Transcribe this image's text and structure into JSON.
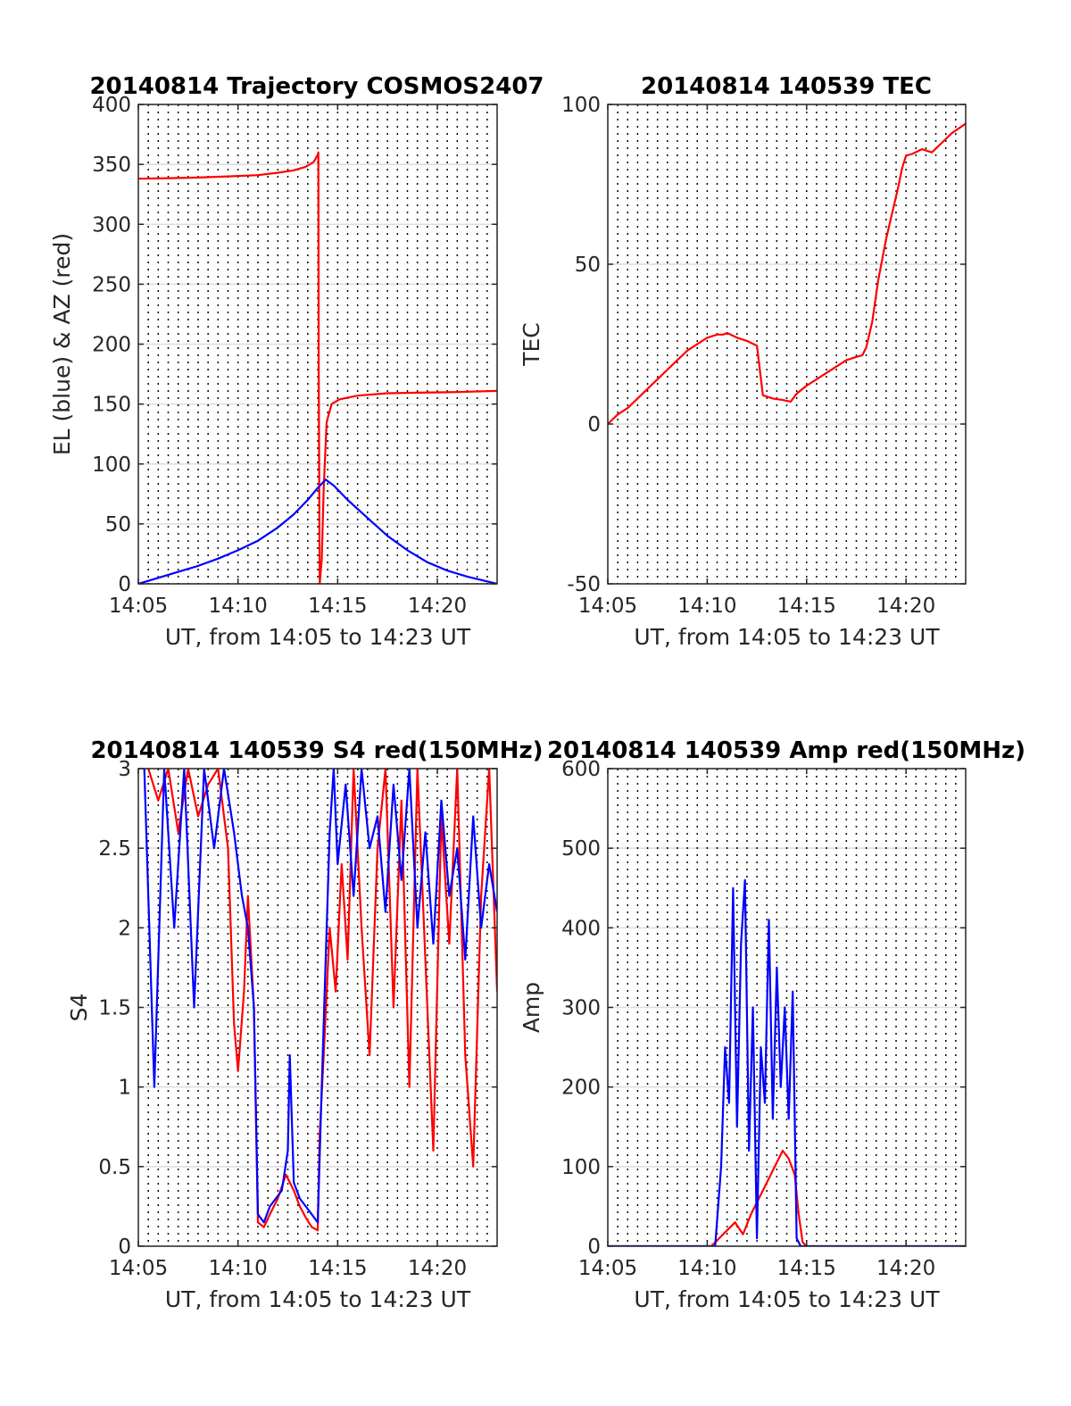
{
  "chart_data": [
    {
      "type": "line",
      "title": "20140814 Trajectory COSMOS2407",
      "xlabel": "UT, from 14:05 to 14:23 UT",
      "ylabel": "EL (blue) & AZ (red)",
      "x_unit": "minutes since 14:00",
      "xlim": [
        5,
        23
      ],
      "ylim": [
        0,
        400
      ],
      "xticks": [
        5,
        10,
        15,
        20
      ],
      "xtick_labels": [
        "14:05",
        "14:10",
        "14:15",
        "14:20"
      ],
      "yticks": [
        0,
        50,
        100,
        150,
        200,
        250,
        300,
        350,
        400
      ],
      "ytick_labels": [
        "0",
        "50",
        "100",
        "150",
        "200",
        "250",
        "300",
        "350",
        "400"
      ],
      "grid": "dotted vertical every 0.5 min, solid horizontal at y ticks",
      "series": [
        {
          "name": "AZ",
          "color": "#ff0000",
          "x": [
            5.0,
            6.5,
            8.0,
            9.5,
            11.0,
            12.0,
            12.8,
            13.4,
            13.8,
            14.0,
            14.03,
            14.05,
            14.1,
            14.2,
            14.3,
            14.45,
            14.7,
            15.1,
            16.0,
            17.5,
            19.0,
            21.0,
            23.0
          ],
          "y": [
            338,
            338.5,
            339,
            340,
            341,
            343,
            345,
            348,
            352,
            358,
            360,
            180,
            0,
            20,
            80,
            135,
            150,
            154,
            157,
            159,
            159.5,
            160,
            161
          ]
        },
        {
          "name": "EL",
          "color": "#0000ff",
          "x": [
            5.0,
            6.0,
            7.0,
            8.0,
            9.0,
            10.0,
            11.0,
            12.0,
            12.8,
            13.5,
            14.0,
            14.4,
            14.8,
            15.5,
            16.5,
            17.5,
            18.5,
            19.5,
            20.5,
            21.5,
            22.5,
            23.0
          ],
          "y": [
            0,
            5,
            10,
            15,
            21,
            28,
            36,
            47,
            58,
            70,
            80,
            87,
            82,
            70,
            55,
            40,
            28,
            18,
            11,
            6,
            2,
            0
          ]
        }
      ]
    },
    {
      "type": "line",
      "title": "20140814 140539 TEC",
      "xlabel": "UT, from 14:05 to 14:23 UT",
      "ylabel": "TEC",
      "x_unit": "minutes since 14:00",
      "xlim": [
        5,
        23
      ],
      "ylim": [
        -50,
        100
      ],
      "xticks": [
        5,
        10,
        15,
        20
      ],
      "xtick_labels": [
        "14:05",
        "14:10",
        "14:15",
        "14:20"
      ],
      "yticks": [
        -50,
        0,
        50,
        100
      ],
      "ytick_labels": [
        "-50",
        "0",
        "50",
        "100"
      ],
      "series": [
        {
          "name": "TEC",
          "color": "#ff0000",
          "x": [
            5.0,
            5.5,
            6.0,
            7.0,
            8.0,
            9.0,
            10.0,
            10.5,
            10.8,
            11.0,
            11.5,
            12.0,
            12.5,
            12.8,
            13.3,
            13.8,
            14.2,
            14.5,
            15.0,
            15.5,
            16.0,
            16.5,
            17.0,
            17.5,
            17.8,
            18.0,
            18.3,
            18.6,
            19.0,
            19.3,
            19.6,
            19.8,
            20.0,
            20.3,
            20.8,
            21.3,
            21.8,
            22.3,
            23.0
          ],
          "y": [
            0,
            3,
            5,
            11,
            17,
            23,
            27,
            28,
            28,
            28.5,
            27,
            26,
            24.5,
            9,
            8,
            7.5,
            7,
            9.5,
            12,
            14,
            16,
            18,
            20,
            21,
            21.5,
            24,
            32,
            45,
            58,
            66,
            74,
            80,
            84,
            84.5,
            86,
            85,
            88,
            91,
            94
          ]
        }
      ]
    },
    {
      "type": "line",
      "title": "20140814 140539 S4 red(150MHz)",
      "xlabel": "UT, from 14:05 to 14:23 UT",
      "ylabel": "S4",
      "x_unit": "minutes since 14:00",
      "xlim": [
        5,
        23
      ],
      "ylim": [
        0,
        3
      ],
      "xticks": [
        5,
        10,
        15,
        20
      ],
      "xtick_labels": [
        "14:05",
        "14:10",
        "14:15",
        "14:20"
      ],
      "yticks": [
        0,
        0.5,
        1,
        1.5,
        2,
        2.5,
        3
      ],
      "ytick_labels": [
        "0",
        "0.5",
        "1",
        "1.5",
        "2",
        "2.5",
        "3"
      ],
      "series": [
        {
          "name": "S4 red (150MHz)",
          "color": "#ff0000",
          "x": [
            5.5,
            6.0,
            6.5,
            7.0,
            7.5,
            8.0,
            8.5,
            9.0,
            9.5,
            9.8,
            10.0,
            10.3,
            10.5,
            10.8,
            11.0,
            11.3,
            11.6,
            12.0,
            12.4,
            12.8,
            13.1,
            13.4,
            13.7,
            14.0,
            14.1,
            14.3,
            14.6,
            14.9,
            15.2,
            15.5,
            15.8,
            16.2,
            16.6,
            17.0,
            17.4,
            17.8,
            18.2,
            18.6,
            19.0,
            19.4,
            19.8,
            20.2,
            20.6,
            21.0,
            21.4,
            21.8,
            22.2,
            22.6,
            23.0
          ],
          "y": [
            3.0,
            2.8,
            3.0,
            2.6,
            3.0,
            2.7,
            2.9,
            3.0,
            2.5,
            1.4,
            1.1,
            1.6,
            2.2,
            1.5,
            0.15,
            0.12,
            0.2,
            0.3,
            0.45,
            0.35,
            0.25,
            0.18,
            0.12,
            0.1,
            0.7,
            1.2,
            2.0,
            1.6,
            2.4,
            1.8,
            3.0,
            2.0,
            1.2,
            2.5,
            3.0,
            1.5,
            2.8,
            1.0,
            3.0,
            1.8,
            0.6,
            2.7,
            1.9,
            3.0,
            1.2,
            0.5,
            2.2,
            3.0,
            1.6
          ]
        },
        {
          "name": "S4 blue",
          "color": "#0000ff",
          "x": [
            5.3,
            5.8,
            6.3,
            6.8,
            7.3,
            7.8,
            8.3,
            8.8,
            9.3,
            9.8,
            10.2,
            10.5,
            10.8,
            11.0,
            11.3,
            11.6,
            11.9,
            12.2,
            12.5,
            12.6,
            12.8,
            13.1,
            13.4,
            13.7,
            14.0,
            14.2,
            14.4,
            14.6,
            14.8,
            15.0,
            15.4,
            15.8,
            16.2,
            16.6,
            17.0,
            17.4,
            17.8,
            18.2,
            18.6,
            19.0,
            19.4,
            19.8,
            20.2,
            20.6,
            21.0,
            21.4,
            21.8,
            22.2,
            22.6,
            23.0
          ],
          "y": [
            3.0,
            1.0,
            3.0,
            2.0,
            3.0,
            1.5,
            3.0,
            2.5,
            3.0,
            2.6,
            2.2,
            2.0,
            1.5,
            0.2,
            0.15,
            0.25,
            0.3,
            0.35,
            0.6,
            1.2,
            0.4,
            0.3,
            0.25,
            0.2,
            0.15,
            1.0,
            1.8,
            2.6,
            3.0,
            2.4,
            2.9,
            2.2,
            3.0,
            2.5,
            2.7,
            2.1,
            2.9,
            2.3,
            3.0,
            2.0,
            2.6,
            1.9,
            2.8,
            2.2,
            2.5,
            1.8,
            2.7,
            2.0,
            2.4,
            2.1
          ]
        }
      ]
    },
    {
      "type": "line",
      "title": "20140814 140539 Amp red(150MHz)",
      "xlabel": "UT, from 14:05 to 14:23 UT",
      "ylabel": "Amp",
      "x_unit": "minutes since 14:00",
      "xlim": [
        5,
        23
      ],
      "ylim": [
        0,
        600
      ],
      "xticks": [
        5,
        10,
        15,
        20
      ],
      "xtick_labels": [
        "14:05",
        "14:10",
        "14:15",
        "14:20"
      ],
      "yticks": [
        0,
        100,
        200,
        300,
        400,
        500,
        600
      ],
      "ytick_labels": [
        "0",
        "100",
        "200",
        "300",
        "400",
        "500",
        "600"
      ],
      "series": [
        {
          "name": "Amp red (150MHz)",
          "color": "#ff0000",
          "x": [
            5.0,
            10.2,
            10.6,
            11.0,
            11.4,
            11.8,
            12.2,
            12.6,
            13.0,
            13.4,
            13.8,
            14.1,
            14.4,
            14.6,
            14.8,
            15.0,
            23.0
          ],
          "y": [
            0,
            0,
            10,
            20,
            30,
            15,
            40,
            60,
            80,
            100,
            120,
            110,
            90,
            40,
            5,
            0,
            0
          ]
        },
        {
          "name": "Amp blue",
          "color": "#0000ff",
          "x": [
            5.0,
            10.4,
            10.7,
            10.9,
            11.1,
            11.3,
            11.5,
            11.7,
            11.9,
            12.1,
            12.3,
            12.5,
            12.7,
            12.9,
            13.1,
            13.3,
            13.5,
            13.7,
            13.9,
            14.1,
            14.3,
            14.5,
            14.7,
            14.9,
            23.0
          ],
          "y": [
            0,
            0,
            100,
            250,
            180,
            450,
            150,
            380,
            460,
            120,
            300,
            10,
            250,
            180,
            410,
            160,
            350,
            200,
            300,
            160,
            320,
            10,
            0,
            0,
            0
          ]
        }
      ]
    }
  ]
}
